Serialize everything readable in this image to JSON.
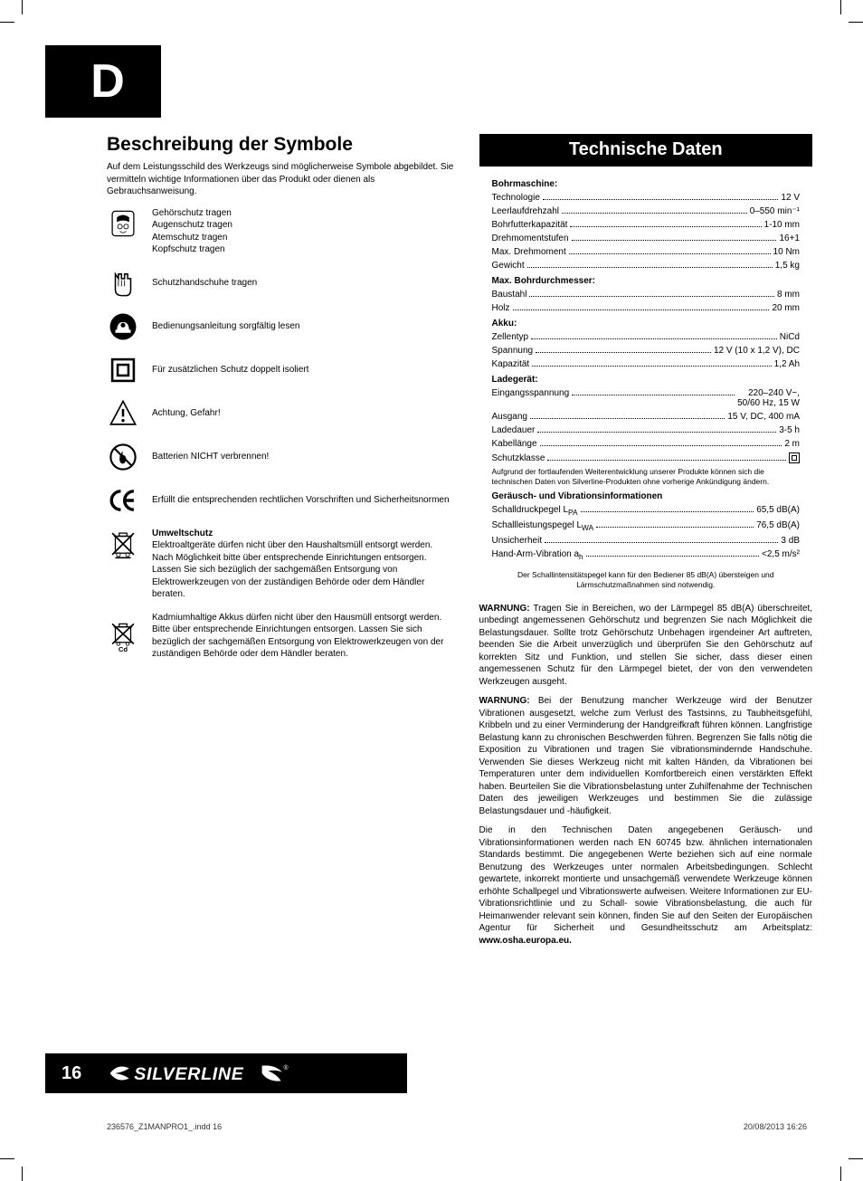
{
  "tab_letter": "D",
  "left": {
    "title": "Beschreibung der Symbole",
    "intro": "Auf dem Leistungsschild des Werkzeugs sind möglicherweise Symbole abgebildet. Sie vermitteln wichtige Informationen über das Produkt oder dienen als Gebrauchsanweisung.",
    "symbols": [
      {
        "id": "ppe",
        "lines": [
          "Gehörschutz tragen",
          "Augenschutz tragen",
          "Atemschutz tragen",
          "Kopfschutz tragen"
        ]
      },
      {
        "id": "gloves",
        "text": "Schutzhandschuhe tragen"
      },
      {
        "id": "manual",
        "text": "Bedienungsanleitung sorgfältig lesen"
      },
      {
        "id": "double-insulated",
        "text": "Für zusätzlichen Schutz doppelt isoliert"
      },
      {
        "id": "warning",
        "text": "Achtung, Gefahr!"
      },
      {
        "id": "no-burn",
        "text": "Batterien NICHT verbrennen!"
      },
      {
        "id": "ce",
        "text": "Erfüllt die entsprechenden rechtlichen Vorschriften und Sicherheitsnormen"
      },
      {
        "id": "weee",
        "heading": "Umweltschutz",
        "text": "Elektroaltgeräte dürfen nicht über den Haushaltsmüll entsorgt werden. Nach Möglichkeit bitte über entsprechende Einrichtungen entsorgen. Lassen Sie sich bezüglich der sachgemäßen Entsorgung von Elektrowerkzeugen von der zuständigen Behörde oder dem Händler beraten."
      },
      {
        "id": "cd",
        "text": "Kadmiumhaltige Akkus dürfen nicht über den Hausmüll entsorgt werden. Bitte über entsprechende Einrichtungen entsorgen. Lassen Sie sich bezüglich der sachgemäßen Entsorgung von Elektrowerkzeugen von der zuständigen Behörde oder dem Händler beraten."
      }
    ]
  },
  "right": {
    "title": "Technische Daten",
    "sections": [
      {
        "heading": "Bohrmaschine:",
        "rows": [
          {
            "l": "Technologie",
            "v": "12 V"
          },
          {
            "l": "Leerlaufdrehzahl",
            "v": "0–550 min⁻¹"
          },
          {
            "l": "Bohrfutterkapazität",
            "v": "1-10 mm"
          },
          {
            "l": "Drehmomentstufen",
            "v": "16+1"
          },
          {
            "l": "Max. Drehmoment",
            "v": "10 Nm"
          },
          {
            "l": "Gewicht",
            "v": "1,5 kg"
          }
        ]
      },
      {
        "heading": "Max. Bohrdurchmesser:",
        "rows": [
          {
            "l": "Baustahl",
            "v": "8 mm"
          },
          {
            "l": "Holz",
            "v": "20 mm"
          }
        ]
      },
      {
        "heading": "Akku:",
        "rows": [
          {
            "l": "Zellentyp",
            "v": "NiCd"
          },
          {
            "l": "Spannung",
            "v": "12 V (10 x 1,2 V), DC"
          },
          {
            "l": "Kapazität",
            "v": "1,2 Ah"
          }
        ]
      },
      {
        "heading": "Ladegerät:",
        "rows": [
          {
            "l": "Eingangsspannung",
            "v": "220–240 V~,<br>50/60 Hz, 15 W"
          },
          {
            "l": "Ausgang",
            "v": "15 V, DC, 400 mA"
          },
          {
            "l": "Ladedauer",
            "v": "3-5 h"
          },
          {
            "l": "Kabellänge",
            "v": "2 m"
          },
          {
            "l": "Schutzklasse",
            "v": "<span class=\"sq-box\"></span>"
          }
        ]
      }
    ],
    "note1": "Aufgrund der fortlaufenden Weiterentwicklung unserer Produkte können sich die technischen Daten von Silverline-Produkten ohne vorherige Ankündigung ändern.",
    "noise_heading": "Geräusch- und Vibrationsinformationen",
    "noise_rows": [
      {
        "l": "Schalldruckpegel L<sub>PA</sub>",
        "v": "65,5 dB(A)"
      },
      {
        "l": "Schallleistungspegel L<sub>WA</sub>",
        "v": "76,5 dB(A)"
      },
      {
        "l": "Unsicherheit",
        "v": "3 dB"
      },
      {
        "l": "Hand-Arm-Vibration a<sub>h</sub>",
        "v": "<2,5 m/s²"
      }
    ],
    "note2": "Der Schallintensitätspegel kann für den Bediener 85 dB(A) übersteigen und Lärmschutzmaßnahmen sind notwendig.",
    "warnings": [
      "<b>WARNUNG:</b> Tragen Sie in Bereichen, wo der Lärmpegel 85 dB(A) überschreitet, unbedingt angemessenen Gehörschutz und begrenzen Sie nach Möglichkeit die Belastungsdauer. Sollte trotz Gehörschutz Unbehagen irgendeiner Art auftreten, beenden Sie die Arbeit unverzüglich und überprüfen Sie den Gehörschutz auf korrekten Sitz und Funktion, und stellen Sie sicher, dass dieser einen angemessenen Schutz für den Lärmpegel bietet, der von den verwendeten Werkzeugen ausgeht.",
      "<b>WARNUNG:</b> Bei der Benutzung mancher Werkzeuge wird der Benutzer Vibrationen ausgesetzt, welche zum Verlust des Tastsinns, zu Taubheitsgefühl, Kribbeln und zu einer Verminderung der Handgreifkraft führen können. Langfristige Belastung kann zu chronischen Beschwerden führen. Begrenzen Sie falls nötig die Exposition zu Vibrationen und tragen Sie vibrationsmindernde Handschuhe. Verwenden Sie dieses Werkzeug nicht mit kalten Händen, da Vibrationen bei Temperaturen unter dem individuellen Komfortbereich einen verstärkten Effekt haben. Beurteilen Sie die Vibrationsbelastung unter Zuhilfenahme der Technischen Daten des jeweiligen Werkzeuges und bestimmen Sie die zulässige Belastungsdauer und -häufigkeit.",
      "Die in den Technischen Daten angegebenen Geräusch- und Vibrationsinformationen werden nach EN 60745 bzw. ähnlichen internationalen Standards bestimmt. Die angegebenen Werte beziehen sich auf eine normale Benutzung des Werkzeuges unter normalen Arbeitsbedingungen. Schlecht gewartete, inkorrekt montierte und unsachgemäß verwendete Werkzeuge können erhöhte Schallpegel und Vibrationswerte aufweisen. Weitere Informationen zur EU-Vibrationsrichtlinie und zu Schall- sowie Vibrationsbelastung, die auch für Heimanwender relevant sein können, finden Sie auf den Seiten der Europäischen Agentur für Sicherheit und Gesundheitsschutz am Arbeitsplatz: <b>www.osha.europa.eu.</b>"
    ]
  },
  "footer": {
    "page": "16",
    "brand": "SILVERLINE",
    "file": "236576_Z1MANPRO1_.indd   16",
    "date": "20/08/2013   16:26"
  }
}
